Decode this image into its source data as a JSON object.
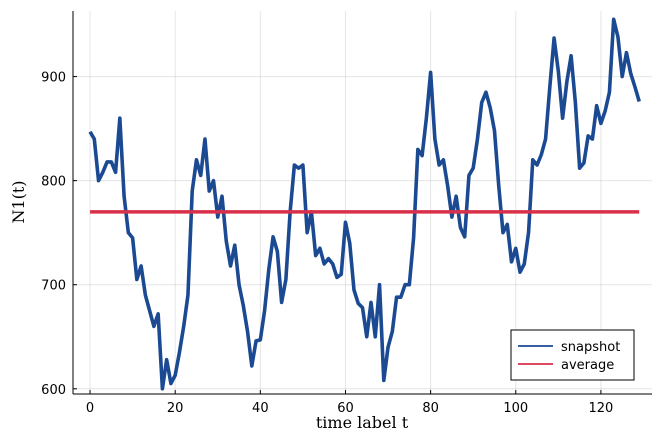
{
  "chart_data": {
    "type": "line",
    "title": "",
    "xlabel": "time label t",
    "ylabel": "N1(t)",
    "xlim": [
      -4,
      132
    ],
    "ylim": [
      595,
      963
    ],
    "xticks": [
      0,
      20,
      40,
      60,
      80,
      100,
      120
    ],
    "yticks": [
      600,
      700,
      800,
      900
    ],
    "grid": true,
    "legend_position": "bottom-right",
    "series": [
      {
        "name": "snapshot",
        "color": "#1b4a93",
        "x": [
          0,
          1,
          2,
          3,
          4,
          5,
          6,
          7,
          8,
          9,
          10,
          11,
          12,
          13,
          14,
          15,
          16,
          17,
          18,
          19,
          20,
          21,
          22,
          23,
          24,
          25,
          26,
          27,
          28,
          29,
          30,
          31,
          32,
          33,
          34,
          35,
          36,
          37,
          38,
          39,
          40,
          41,
          42,
          43,
          44,
          45,
          46,
          47,
          48,
          49,
          50,
          51,
          52,
          53,
          54,
          55,
          56,
          57,
          58,
          59,
          60,
          61,
          62,
          63,
          64,
          65,
          66,
          67,
          68,
          69,
          70,
          71,
          72,
          73,
          74,
          75,
          76,
          77,
          78,
          79,
          80,
          81,
          82,
          83,
          84,
          85,
          86,
          87,
          88,
          89,
          90,
          91,
          92,
          93,
          94,
          95,
          96,
          97,
          98,
          99,
          100,
          101,
          102,
          103,
          104,
          105,
          106,
          107,
          108,
          109,
          110,
          111,
          112,
          113,
          114,
          115,
          116,
          117,
          118,
          119,
          120,
          121,
          122,
          123,
          124,
          125,
          126,
          127,
          128,
          129
        ],
        "values": [
          847,
          840,
          800,
          808,
          818,
          818,
          808,
          860,
          785,
          750,
          745,
          705,
          718,
          690,
          675,
          660,
          672,
          600,
          628,
          605,
          613,
          635,
          660,
          690,
          790,
          820,
          805,
          840,
          790,
          800,
          765,
          785,
          742,
          718,
          738,
          700,
          680,
          655,
          622,
          646,
          647,
          675,
          715,
          746,
          732,
          683,
          705,
          770,
          815,
          812,
          815,
          750,
          770,
          728,
          735,
          720,
          725,
          720,
          707,
          710,
          760,
          740,
          695,
          682,
          678,
          650,
          683,
          650,
          700,
          608,
          640,
          655,
          688,
          688,
          700,
          700,
          745,
          830,
          824,
          860,
          904,
          840,
          815,
          820,
          795,
          765,
          785,
          755,
          746,
          805,
          812,
          840,
          875,
          885,
          870,
          848,
          795,
          750,
          758,
          722,
          735,
          712,
          720,
          750,
          820,
          815,
          825,
          840,
          890,
          937,
          905,
          860,
          895,
          920,
          875,
          812,
          817,
          843,
          840,
          872,
          855,
          867,
          885,
          955,
          938,
          900,
          923,
          903,
          890,
          876
        ]
      },
      {
        "name": "average",
        "color": "#d8304a",
        "x": [
          0,
          129
        ],
        "values": [
          770,
          770
        ]
      }
    ]
  }
}
